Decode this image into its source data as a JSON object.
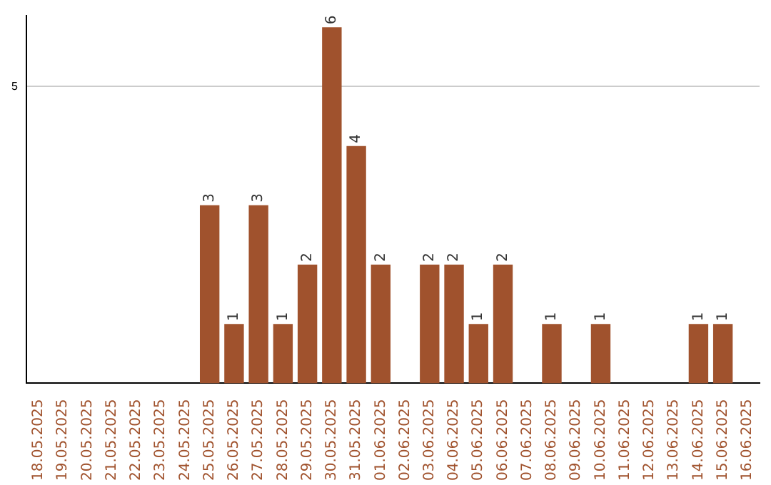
{
  "chart_data": {
    "type": "bar",
    "categories": [
      "18.05.2025",
      "19.05.2025",
      "20.05.2025",
      "21.05.2025",
      "22.05.2025",
      "23.05.2025",
      "24.05.2025",
      "25.05.2025",
      "26.05.2025",
      "27.05.2025",
      "28.05.2025",
      "29.05.2025",
      "30.05.2025",
      "31.05.2025",
      "01.06.2025",
      "02.06.2025",
      "03.06.2025",
      "04.06.2025",
      "05.06.2025",
      "06.06.2025",
      "07.06.2025",
      "08.06.2025",
      "09.06.2025",
      "10.06.2025",
      "11.06.2025",
      "12.06.2025",
      "13.06.2025",
      "14.06.2025",
      "15.06.2025",
      "16.06.2025"
    ],
    "values": [
      0,
      0,
      0,
      0,
      0,
      0,
      0,
      3,
      1,
      3,
      1,
      2,
      6,
      4,
      2,
      0,
      2,
      2,
      1,
      2,
      0,
      1,
      0,
      1,
      0,
      0,
      0,
      1,
      1,
      0
    ],
    "value_labels": [
      null,
      null,
      null,
      null,
      null,
      null,
      null,
      "3",
      "1",
      "3",
      "1",
      "2",
      "6",
      "4",
      "2",
      null,
      "2",
      "2",
      "1",
      "2",
      null,
      "1",
      null,
      "1",
      null,
      null,
      null,
      "1",
      "1",
      null
    ],
    "color": "#a0522d",
    "ylim": [
      0,
      6.2
    ],
    "yticks": [
      5
    ],
    "grid": "y",
    "legend": false
  }
}
